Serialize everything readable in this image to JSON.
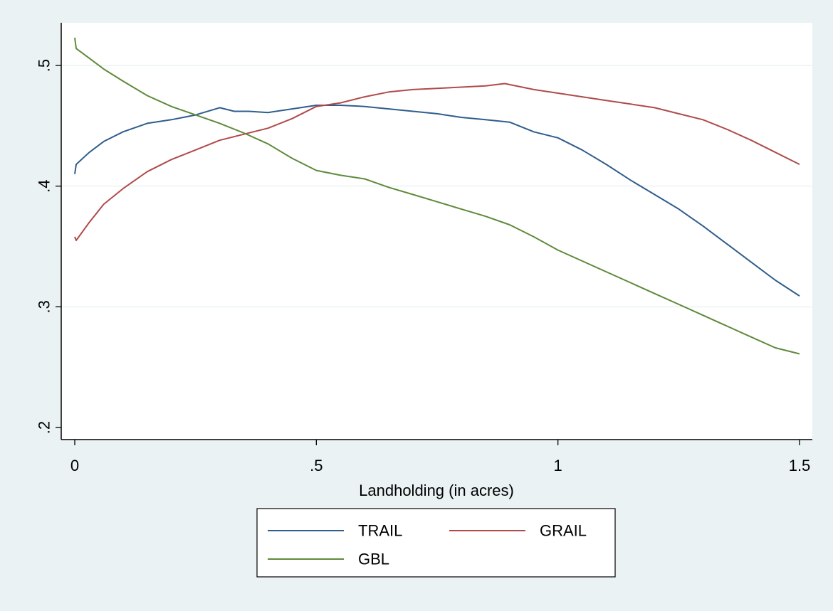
{
  "chart_data": {
    "type": "line",
    "title": "",
    "xlabel": "Landholding (in acres)",
    "ylabel": "",
    "xlim": [
      0,
      1.5
    ],
    "ylim": [
      0.2,
      0.53
    ],
    "x_ticks": [
      {
        "value": 0,
        "label": "0"
      },
      {
        "value": 0.5,
        "label": ".5"
      },
      {
        "value": 1,
        "label": "1"
      },
      {
        "value": 1.5,
        "label": "1.5"
      }
    ],
    "y_ticks": [
      {
        "value": 0.2,
        "label": ".2"
      },
      {
        "value": 0.3,
        "label": ".3"
      },
      {
        "value": 0.4,
        "label": ".4"
      },
      {
        "value": 0.5,
        "label": ".5"
      }
    ],
    "grid": "horizontal",
    "legend_position": "bottom",
    "series": [
      {
        "name": "TRAIL",
        "color": "#2f5d8c",
        "points": [
          [
            0,
            0.41
          ],
          [
            0.003,
            0.418
          ],
          [
            0.03,
            0.428
          ],
          [
            0.06,
            0.437
          ],
          [
            0.1,
            0.445
          ],
          [
            0.15,
            0.452
          ],
          [
            0.2,
            0.455
          ],
          [
            0.25,
            0.459
          ],
          [
            0.3,
            0.465
          ],
          [
            0.33,
            0.462
          ],
          [
            0.36,
            0.462
          ],
          [
            0.4,
            0.461
          ],
          [
            0.45,
            0.464
          ],
          [
            0.5,
            0.467
          ],
          [
            0.55,
            0.467
          ],
          [
            0.6,
            0.466
          ],
          [
            0.65,
            0.464
          ],
          [
            0.7,
            0.462
          ],
          [
            0.75,
            0.46
          ],
          [
            0.8,
            0.457
          ],
          [
            0.85,
            0.455
          ],
          [
            0.9,
            0.453
          ],
          [
            0.95,
            0.445
          ],
          [
            1.0,
            0.44
          ],
          [
            1.05,
            0.43
          ],
          [
            1.1,
            0.418
          ],
          [
            1.15,
            0.405
          ],
          [
            1.2,
            0.393
          ],
          [
            1.25,
            0.381
          ],
          [
            1.3,
            0.367
          ],
          [
            1.35,
            0.352
          ],
          [
            1.4,
            0.337
          ],
          [
            1.45,
            0.322
          ],
          [
            1.5,
            0.309
          ]
        ]
      },
      {
        "name": "GRAIL",
        "color": "#b04a4a",
        "points": [
          [
            0,
            0.358
          ],
          [
            0.003,
            0.355
          ],
          [
            0.03,
            0.37
          ],
          [
            0.06,
            0.385
          ],
          [
            0.1,
            0.398
          ],
          [
            0.15,
            0.412
          ],
          [
            0.2,
            0.422
          ],
          [
            0.25,
            0.43
          ],
          [
            0.3,
            0.438
          ],
          [
            0.35,
            0.443
          ],
          [
            0.4,
            0.448
          ],
          [
            0.45,
            0.456
          ],
          [
            0.5,
            0.466
          ],
          [
            0.55,
            0.469
          ],
          [
            0.6,
            0.474
          ],
          [
            0.65,
            0.478
          ],
          [
            0.7,
            0.48
          ],
          [
            0.75,
            0.481
          ],
          [
            0.8,
            0.482
          ],
          [
            0.85,
            0.483
          ],
          [
            0.89,
            0.485
          ],
          [
            0.95,
            0.48
          ],
          [
            1.0,
            0.477
          ],
          [
            1.05,
            0.474
          ],
          [
            1.1,
            0.471
          ],
          [
            1.15,
            0.468
          ],
          [
            1.2,
            0.465
          ],
          [
            1.25,
            0.46
          ],
          [
            1.3,
            0.455
          ],
          [
            1.35,
            0.447
          ],
          [
            1.4,
            0.438
          ],
          [
            1.45,
            0.428
          ],
          [
            1.5,
            0.418
          ]
        ]
      },
      {
        "name": "GBL",
        "color": "#5e8a3a",
        "points": [
          [
            0,
            0.523
          ],
          [
            0.003,
            0.514
          ],
          [
            0.03,
            0.506
          ],
          [
            0.06,
            0.497
          ],
          [
            0.1,
            0.487
          ],
          [
            0.15,
            0.475
          ],
          [
            0.2,
            0.466
          ],
          [
            0.25,
            0.459
          ],
          [
            0.3,
            0.452
          ],
          [
            0.35,
            0.444
          ],
          [
            0.4,
            0.435
          ],
          [
            0.45,
            0.423
          ],
          [
            0.5,
            0.413
          ],
          [
            0.55,
            0.409
          ],
          [
            0.6,
            0.406
          ],
          [
            0.65,
            0.399
          ],
          [
            0.7,
            0.393
          ],
          [
            0.75,
            0.387
          ],
          [
            0.8,
            0.381
          ],
          [
            0.85,
            0.375
          ],
          [
            0.9,
            0.368
          ],
          [
            0.95,
            0.358
          ],
          [
            1.0,
            0.347
          ],
          [
            1.05,
            0.338
          ],
          [
            1.1,
            0.329
          ],
          [
            1.15,
            0.32
          ],
          [
            1.2,
            0.311
          ],
          [
            1.25,
            0.302
          ],
          [
            1.3,
            0.293
          ],
          [
            1.35,
            0.284
          ],
          [
            1.4,
            0.275
          ],
          [
            1.45,
            0.266
          ],
          [
            1.5,
            0.261
          ]
        ]
      }
    ]
  }
}
